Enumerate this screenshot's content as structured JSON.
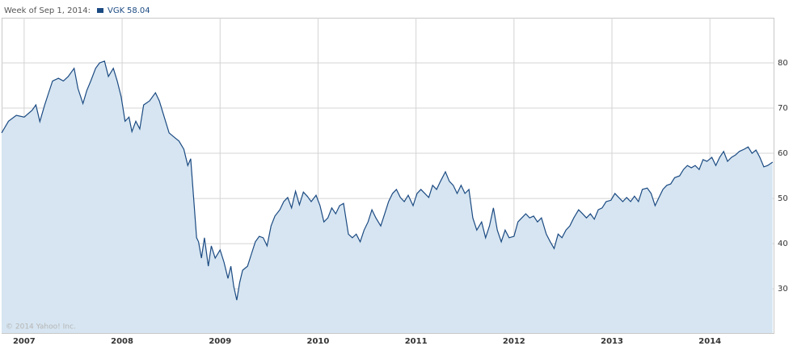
{
  "chart_data": {
    "type": "area",
    "header": "Week of Sep 1, 2014:",
    "copyright": "© 2014 Yahoo! Inc.",
    "x": [
      2006.77,
      2006.84,
      2006.92,
      2007.0,
      2007.08,
      2007.12,
      2007.16,
      2007.21,
      2007.25,
      2007.29,
      2007.35,
      2007.4,
      2007.45,
      2007.51,
      2007.55,
      2007.6,
      2007.64,
      2007.68,
      2007.73,
      2007.77,
      2007.82,
      2007.86,
      2007.91,
      2007.95,
      2007.99,
      2008.03,
      2008.07,
      2008.1,
      2008.14,
      2008.18,
      2008.22,
      2008.28,
      2008.34,
      2008.38,
      2008.43,
      2008.48,
      2008.53,
      2008.58,
      2008.63,
      2008.67,
      2008.7,
      2008.73,
      2008.76,
      2008.78,
      2008.81,
      2008.84,
      2008.88,
      2008.91,
      2008.95,
      2009.0,
      2009.04,
      2009.08,
      2009.11,
      2009.14,
      2009.17,
      2009.2,
      2009.23,
      2009.28,
      2009.32,
      2009.36,
      2009.4,
      2009.44,
      2009.48,
      2009.52,
      2009.56,
      2009.61,
      2009.65,
      2009.69,
      2009.73,
      2009.77,
      2009.81,
      2009.85,
      2009.89,
      2009.93,
      2009.98,
      2010.02,
      2010.06,
      2010.1,
      2010.14,
      2010.18,
      2010.22,
      2010.26,
      2010.31,
      2010.35,
      2010.39,
      2010.43,
      2010.47,
      2010.51,
      2010.55,
      2010.59,
      2010.64,
      2010.68,
      2010.72,
      2010.76,
      2010.8,
      2010.84,
      2010.88,
      2010.92,
      2010.97,
      2011.01,
      2011.05,
      2011.09,
      2011.13,
      2011.17,
      2011.21,
      2011.25,
      2011.3,
      2011.34,
      2011.38,
      2011.42,
      2011.46,
      2011.5,
      2011.54,
      2011.58,
      2011.62,
      2011.67,
      2011.71,
      2011.75,
      2011.79,
      2011.83,
      2011.87,
      2011.91,
      2011.95,
      2012.0,
      2012.04,
      2012.08,
      2012.12,
      2012.16,
      2012.2,
      2012.24,
      2012.28,
      2012.33,
      2012.37,
      2012.41,
      2012.45,
      2012.49,
      2012.53,
      2012.57,
      2012.61,
      2012.66,
      2012.7,
      2012.74,
      2012.78,
      2012.82,
      2012.86,
      2012.9,
      2012.94,
      2012.99,
      2013.03,
      2013.07,
      2013.11,
      2013.15,
      2013.19,
      2013.23,
      2013.27,
      2013.31,
      2013.36,
      2013.4,
      2013.44,
      2013.48,
      2013.52,
      2013.56,
      2013.6,
      2013.64,
      2013.69,
      2013.73,
      2013.77,
      2013.81,
      2013.85,
      2013.89,
      2013.93,
      2013.97,
      2014.02,
      2014.06,
      2014.1,
      2014.14,
      2014.18,
      2014.22,
      2014.26,
      2014.3,
      2014.35,
      2014.39,
      2014.43,
      2014.47,
      2014.51,
      2014.55,
      2014.59,
      2014.64
    ],
    "series": [
      {
        "name": "VGK",
        "color": "#1b4a82",
        "fill": "#d6e5f1",
        "values": [
          64.5,
          67.1,
          68.4,
          68,
          69.5,
          70.7,
          67,
          70.7,
          73.4,
          76,
          76.6,
          76,
          77,
          78.8,
          74.3,
          71,
          73.9,
          76,
          78.8,
          80,
          80.4,
          77,
          78.8,
          76,
          72.5,
          67.1,
          68,
          64.8,
          67.1,
          65.4,
          70.7,
          71.6,
          73.4,
          71.6,
          68,
          64.5,
          63.6,
          62.7,
          60.9,
          57.3,
          58.8,
          50.2,
          41.3,
          40.4,
          36.8,
          41.3,
          35,
          39.5,
          36.8,
          38.6,
          35.9,
          32.3,
          35,
          30.5,
          27.5,
          31.4,
          34.1,
          35,
          37.7,
          40.4,
          41.6,
          41.3,
          39.5,
          43.9,
          46.1,
          47.5,
          49.3,
          50.2,
          47.9,
          51.6,
          48.6,
          51.4,
          50.5,
          49.3,
          50.7,
          48.4,
          44.8,
          45.7,
          47.9,
          46.6,
          48.4,
          48.9,
          42.1,
          41.3,
          42.1,
          40.4,
          43,
          44.8,
          47.5,
          45.7,
          43.9,
          46.6,
          49.3,
          51.1,
          52,
          50.2,
          49.3,
          50.7,
          48.4,
          51.1,
          52,
          51.1,
          50.2,
          52.9,
          52,
          53.8,
          55.9,
          53.8,
          52.9,
          51.1,
          52.9,
          51.1,
          52,
          45.7,
          43,
          44.8,
          41.3,
          43.9,
          47.9,
          43,
          40.4,
          43,
          41.3,
          41.6,
          44.8,
          45.7,
          46.6,
          45.7,
          46.1,
          44.8,
          45.7,
          42.1,
          40.4,
          38.9,
          42.1,
          41.3,
          43,
          43.9,
          45.7,
          47.5,
          46.6,
          45.7,
          46.6,
          45.4,
          47.5,
          47.9,
          49.3,
          49.6,
          51.1,
          50.2,
          49.3,
          50.2,
          49.3,
          50.5,
          49.3,
          52,
          52.3,
          51.1,
          48.4,
          50.2,
          52,
          52.9,
          53.2,
          54.6,
          55,
          56.4,
          57.3,
          56.8,
          57.3,
          56.4,
          58.6,
          58.2,
          59.1,
          57.3,
          59.1,
          60.4,
          58.2,
          59.1,
          59.6,
          60.4,
          60.9,
          61.4,
          60,
          60.7,
          59.1,
          57,
          57.3,
          58.04
        ]
      }
    ],
    "xlim": [
      2006.77,
      2014.65
    ],
    "xticks": [
      2007,
      2008,
      2009,
      2010,
      2011,
      2012,
      2013,
      2014
    ],
    "ylim": [
      20.2,
      90
    ],
    "yticks": [
      30,
      40,
      50,
      60,
      70,
      80
    ],
    "grid": true
  }
}
